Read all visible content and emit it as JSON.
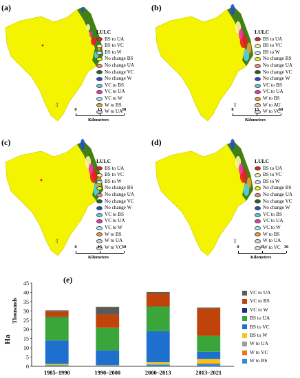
{
  "panels": [
    {
      "label": "(a)",
      "legend_title": "LULC",
      "legend": [
        {
          "text": "BS to UA",
          "color": "#e8201f"
        },
        {
          "text": "BS to VC",
          "color": "#fff3a0"
        },
        {
          "text": "BS to W",
          "color": "#cfe8f6"
        },
        {
          "text": "No change BS",
          "color": "#f4f400"
        },
        {
          "text": "No change UA",
          "color": "#f08a8a"
        },
        {
          "text": "No change VC",
          "color": "#1e6b1e"
        },
        {
          "text": "No change W",
          "color": "#1f4fcc"
        },
        {
          "text": "VC to BS",
          "color": "#5ad0e6"
        },
        {
          "text": "VC to UA",
          "color": "#ff2fb0"
        },
        {
          "text": "VC to W",
          "color": "#9ff0f0"
        },
        {
          "text": "W to BS",
          "color": "#f0a030"
        },
        {
          "text": "W to UA",
          "color": "#d8d8d8"
        }
      ],
      "scale_ticks": [
        "0",
        "15",
        "30"
      ],
      "scale_unit": "Kilometers"
    },
    {
      "label": "(b)",
      "legend_title": "LULC",
      "legend": [
        {
          "text": "BS to UA",
          "color": "#e8201f"
        },
        {
          "text": "BS to VC",
          "color": "#fff3a0"
        },
        {
          "text": "BS to W",
          "color": "#cfe8f6"
        },
        {
          "text": "No change BS",
          "color": "#f4f400"
        },
        {
          "text": "No change UA",
          "color": "#f08a8a"
        },
        {
          "text": "No change VC",
          "color": "#1e6b1e"
        },
        {
          "text": "No change W",
          "color": "#1f4fcc"
        },
        {
          "text": "VC to BS",
          "color": "#5ad0e6"
        },
        {
          "text": "VC to UA",
          "color": "#ff2fb0"
        },
        {
          "text": "W to BS",
          "color": "#f0a030"
        },
        {
          "text": "W to AU",
          "color": "#f0c8a0"
        },
        {
          "text": "W to VC",
          "color": "#e0e0f0"
        }
      ],
      "scale_ticks": [
        "0",
        "15",
        "30"
      ],
      "scale_unit": "Kilometers"
    },
    {
      "label": "(c)",
      "legend_title": "LULC",
      "legend": [
        {
          "text": "BS to UA",
          "color": "#e8201f"
        },
        {
          "text": "BS to VC",
          "color": "#fff3a0"
        },
        {
          "text": "BS to W",
          "color": "#cfe8f6"
        },
        {
          "text": "No change BS",
          "color": "#f4f400"
        },
        {
          "text": "No change UA",
          "color": "#f08a8a"
        },
        {
          "text": "No change VC",
          "color": "#1e6b1e"
        },
        {
          "text": "No change W",
          "color": "#1f4fcc"
        },
        {
          "text": "VC to BS",
          "color": "#5ad0e6"
        },
        {
          "text": "VC to UA",
          "color": "#ff2fb0"
        },
        {
          "text": "VC to W",
          "color": "#9ff0f0"
        },
        {
          "text": "W to BS",
          "color": "#f0a030"
        },
        {
          "text": "W to UA",
          "color": "#d8d8d8"
        },
        {
          "text": "W to VC",
          "color": "#e0e0f0"
        }
      ],
      "scale_ticks": [
        "0",
        "15",
        "30"
      ],
      "scale_unit": "Kilometers"
    },
    {
      "label": "(d)",
      "legend_title": "LULC",
      "legend": [
        {
          "text": "BS to UA",
          "color": "#e8201f"
        },
        {
          "text": "BS to VC",
          "color": "#fff3a0"
        },
        {
          "text": "BS to W",
          "color": "#cfe8f6"
        },
        {
          "text": "No change BS",
          "color": "#f4f400"
        },
        {
          "text": "No change UA",
          "color": "#f08a8a"
        },
        {
          "text": "No change VC",
          "color": "#1e6b1e"
        },
        {
          "text": "No change W",
          "color": "#1f4fcc"
        },
        {
          "text": "VC to BS",
          "color": "#5ad0e6"
        },
        {
          "text": "VC to UA",
          "color": "#ff2fb0"
        },
        {
          "text": "VC to W",
          "color": "#9ff0f0"
        },
        {
          "text": "W to BS",
          "color": "#f0a030"
        },
        {
          "text": "W to UA",
          "color": "#d8d8d8"
        },
        {
          "text": "W to VC",
          "color": "#e0e0f0"
        }
      ],
      "scale_ticks": [
        "0",
        "15",
        "30"
      ],
      "scale_unit": "Kilometers"
    }
  ],
  "chart_data": {
    "type": "bar",
    "stacked": true,
    "panel_label": "(e)",
    "ylabel": "Ha",
    "ylabel_secondary": "Thousands",
    "ylim": [
      0,
      45
    ],
    "yticks": [
      0,
      5,
      10,
      15,
      20,
      25,
      30,
      35,
      40,
      45
    ],
    "categories": [
      "1985–1990",
      "1990–2000",
      "2000–2013",
      "2013–2021"
    ],
    "series": [
      {
        "name": "W to BS",
        "color": "#2e8bd8",
        "values": [
          0.6,
          0.3,
          1.0,
          1.2
        ]
      },
      {
        "name": "W to VC",
        "color": "#f2711c",
        "values": [
          0.0,
          0.0,
          0.0,
          0.5
        ]
      },
      {
        "name": "W to UA",
        "color": "#9a9a9a",
        "values": [
          0.0,
          0.0,
          0.0,
          0.0
        ]
      },
      {
        "name": "BS to W",
        "color": "#f5c518",
        "values": [
          0.7,
          0.3,
          1.2,
          2.3
        ]
      },
      {
        "name": "BS to VC",
        "color": "#1f6fce",
        "values": [
          12.7,
          8.0,
          16.8,
          3.9
        ]
      },
      {
        "name": "BS to UA",
        "color": "#3aa63a",
        "values": [
          12.7,
          12.3,
          13.3,
          8.6
        ]
      },
      {
        "name": "VC to W",
        "color": "#1a2f80",
        "values": [
          0.1,
          0.0,
          0.1,
          0.0
        ]
      },
      {
        "name": "VC to BS",
        "color": "#c0440a",
        "values": [
          2.9,
          7.2,
          7.0,
          14.8
        ]
      },
      {
        "name": "VC to UA",
        "color": "#5a5a5a",
        "values": [
          0.6,
          4.0,
          0.8,
          0.5
        ]
      }
    ],
    "legend_position": "right",
    "legend_order": [
      "VC to UA",
      "VC to BS",
      "VC to W",
      "BS to UA",
      "BS to VC",
      "BS to W",
      "W to UA",
      "W to VC",
      "W to BS"
    ]
  }
}
